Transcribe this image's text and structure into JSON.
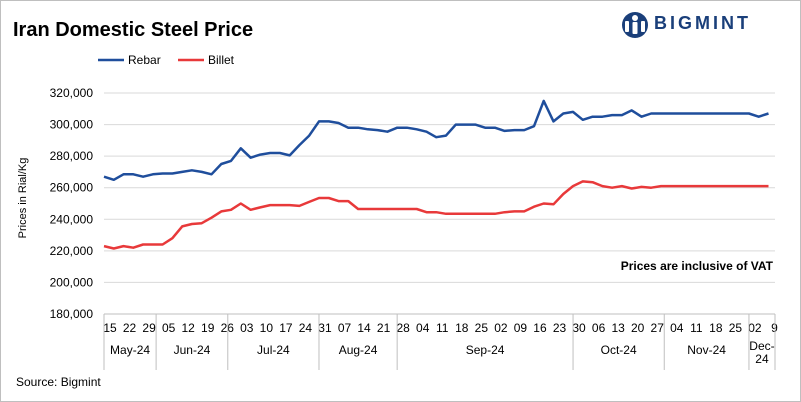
{
  "title": "Iran Domestic Steel Price",
  "brand": {
    "name": "BIGMINT",
    "color": "#1a3f7a"
  },
  "source": "Source: Bigmint",
  "chart_data": {
    "type": "line",
    "title": "Iran Domestic Steel Price",
    "ylabel": "Prices in Rial/Kg",
    "xlabel": "",
    "ylim": [
      180000,
      320000
    ],
    "yticks": [
      180000,
      200000,
      220000,
      240000,
      260000,
      280000,
      300000,
      320000
    ],
    "ytick_labels": [
      "180,000",
      "200,000",
      "220,000",
      "240,000",
      "260,000",
      "280,000",
      "300,000",
      "320,000"
    ],
    "grid": "horizontal",
    "legend": "top-left",
    "annotation": "Prices are inclusive  of VAT",
    "x_tick_labels": [
      "15",
      "22",
      "29",
      "05",
      "12",
      "19",
      "26",
      "03",
      "10",
      "17",
      "24",
      "31",
      "07",
      "14",
      "21",
      "28",
      "04",
      "11",
      "18",
      "25",
      "02",
      "09",
      "16",
      "23",
      "30",
      "06",
      "13",
      "20",
      "27",
      "04",
      "11",
      "18",
      "25",
      "02",
      "9"
    ],
    "x_tick_positions": [
      0,
      3,
      6,
      9,
      12,
      15,
      18,
      21,
      24,
      27,
      30,
      33,
      36,
      39,
      42,
      45,
      48,
      51,
      54,
      57,
      60,
      63,
      66,
      69,
      72,
      75,
      78,
      81,
      84,
      87,
      90,
      93,
      96,
      99,
      102
    ],
    "x_tick_dates": [
      "2024-05-15",
      "2024-05-22",
      "2024-05-29",
      "2024-06-05",
      "2024-06-12",
      "2024-06-19",
      "2024-06-26",
      "2024-07-03",
      "2024-07-10",
      "2024-07-17",
      "2024-07-24",
      "2024-07-31",
      "2024-08-07",
      "2024-08-14",
      "2024-08-21",
      "2024-08-28",
      "2024-09-04",
      "2024-09-11",
      "2024-09-18",
      "2024-09-25",
      "2024-10-02",
      "2024-10-09",
      "2024-10-16",
      "2024-10-23",
      "2024-10-30",
      "2024-11-06",
      "2024-11-13",
      "2024-11-20",
      "2024-11-27",
      "2024-12-04",
      "2024-12-11",
      "2024-12-18",
      "2024-12-25",
      "2025-01-02",
      "2025-01-09"
    ],
    "months": [
      {
        "label": "May-24",
        "start": 0,
        "end": 8
      },
      {
        "label": "Jun-24",
        "start": 8,
        "end": 19
      },
      {
        "label": "Jul-24",
        "start": 19,
        "end": 33
      },
      {
        "label": "Aug-24",
        "start": 33,
        "end": 45
      },
      {
        "label": "Sep-24",
        "start": 45,
        "end": 72
      },
      {
        "label": "Oct-24",
        "start": 72,
        "end": 86
      },
      {
        "label": "Nov-24",
        "start": 86,
        "end": 99
      },
      {
        "label": "Dec-\n24",
        "start": 99,
        "end": 103
      }
    ],
    "series": [
      {
        "name": "Rebar",
        "color": "#1f4e9c",
        "values": [
          [
            0,
            267000
          ],
          [
            1.5,
            265000
          ],
          [
            3,
            268500
          ],
          [
            4.5,
            268500
          ],
          [
            6,
            267000
          ],
          [
            7.5,
            268500
          ],
          [
            9,
            269000
          ],
          [
            10.5,
            269000
          ],
          [
            12,
            270000
          ],
          [
            13.5,
            271000
          ],
          [
            15,
            270000
          ],
          [
            16.5,
            268500
          ],
          [
            18,
            275000
          ],
          [
            19.5,
            277000
          ],
          [
            21,
            285000
          ],
          [
            22.5,
            279000
          ],
          [
            24,
            281000
          ],
          [
            25.5,
            282000
          ],
          [
            27,
            282000
          ],
          [
            28.5,
            280500
          ],
          [
            30,
            287000
          ],
          [
            31.5,
            293000
          ],
          [
            33,
            302000
          ],
          [
            34.5,
            302000
          ],
          [
            36,
            301000
          ],
          [
            37.5,
            298000
          ],
          [
            39,
            298000
          ],
          [
            40.5,
            297000
          ],
          [
            42,
            296500
          ],
          [
            43.5,
            295500
          ],
          [
            45,
            298000
          ],
          [
            46.5,
            298000
          ],
          [
            48,
            297000
          ],
          [
            49.5,
            295500
          ],
          [
            51,
            292000
          ],
          [
            52.5,
            293000
          ],
          [
            54,
            300000
          ],
          [
            55.5,
            300000
          ],
          [
            57,
            300000
          ],
          [
            58.5,
            298000
          ],
          [
            60,
            298000
          ],
          [
            61.5,
            296000
          ],
          [
            63,
            296500
          ],
          [
            64.5,
            296500
          ],
          [
            66,
            299000
          ],
          [
            67.5,
            315000
          ],
          [
            69,
            302000
          ],
          [
            70.5,
            307000
          ],
          [
            72,
            308000
          ],
          [
            73.5,
            303000
          ],
          [
            75,
            305000
          ],
          [
            76.5,
            305000
          ],
          [
            78,
            306000
          ],
          [
            79.5,
            306000
          ],
          [
            81,
            309000
          ],
          [
            82.5,
            305000
          ],
          [
            84,
            307000
          ],
          [
            85.5,
            307000
          ],
          [
            87,
            307000
          ],
          [
            88.5,
            307000
          ],
          [
            90,
            307000
          ],
          [
            91.5,
            307000
          ],
          [
            93,
            307000
          ],
          [
            94.5,
            307000
          ],
          [
            96,
            307000
          ],
          [
            97.5,
            307000
          ],
          [
            99,
            307000
          ],
          [
            100.5,
            305000
          ],
          [
            102,
            307000
          ]
        ]
      },
      {
        "name": "Billet",
        "color": "#e8393a",
        "values": [
          [
            0,
            223000
          ],
          [
            1.5,
            221500
          ],
          [
            3,
            223000
          ],
          [
            4.5,
            222000
          ],
          [
            6,
            224000
          ],
          [
            7.5,
            224000
          ],
          [
            9,
            224000
          ],
          [
            10.5,
            228000
          ],
          [
            12,
            235500
          ],
          [
            13.5,
            237000
          ],
          [
            15,
            237500
          ],
          [
            16.5,
            241000
          ],
          [
            18,
            245000
          ],
          [
            19.5,
            246000
          ],
          [
            21,
            250000
          ],
          [
            22.5,
            246000
          ],
          [
            24,
            247500
          ],
          [
            25.5,
            249000
          ],
          [
            27,
            249000
          ],
          [
            28.5,
            249000
          ],
          [
            30,
            248500
          ],
          [
            31.5,
            251000
          ],
          [
            33,
            253500
          ],
          [
            34.5,
            253500
          ],
          [
            36,
            251500
          ],
          [
            37.5,
            251500
          ],
          [
            39,
            246500
          ],
          [
            40.5,
            246500
          ],
          [
            42,
            246500
          ],
          [
            43.5,
            246500
          ],
          [
            45,
            246500
          ],
          [
            46.5,
            246500
          ],
          [
            48,
            246500
          ],
          [
            49.5,
            244500
          ],
          [
            51,
            244500
          ],
          [
            52.5,
            243500
          ],
          [
            54,
            243500
          ],
          [
            55.5,
            243500
          ],
          [
            57,
            243500
          ],
          [
            58.5,
            243500
          ],
          [
            60,
            243500
          ],
          [
            61.5,
            244500
          ],
          [
            63,
            245000
          ],
          [
            64.5,
            245000
          ],
          [
            66,
            248000
          ],
          [
            67.5,
            250000
          ],
          [
            69,
            249500
          ],
          [
            70.5,
            256000
          ],
          [
            72,
            261000
          ],
          [
            73.5,
            264000
          ],
          [
            75,
            263500
          ],
          [
            76.5,
            261000
          ],
          [
            78,
            260000
          ],
          [
            79.5,
            261000
          ],
          [
            81,
            259500
          ],
          [
            82.5,
            260500
          ],
          [
            84,
            260000
          ],
          [
            85.5,
            261000
          ],
          [
            87,
            261000
          ],
          [
            88.5,
            261000
          ],
          [
            90,
            261000
          ],
          [
            91.5,
            261000
          ],
          [
            93,
            261000
          ],
          [
            94.5,
            261000
          ],
          [
            96,
            261000
          ],
          [
            97.5,
            261000
          ],
          [
            99,
            261000
          ],
          [
            100.5,
            261000
          ],
          [
            102,
            261000
          ]
        ]
      }
    ]
  }
}
